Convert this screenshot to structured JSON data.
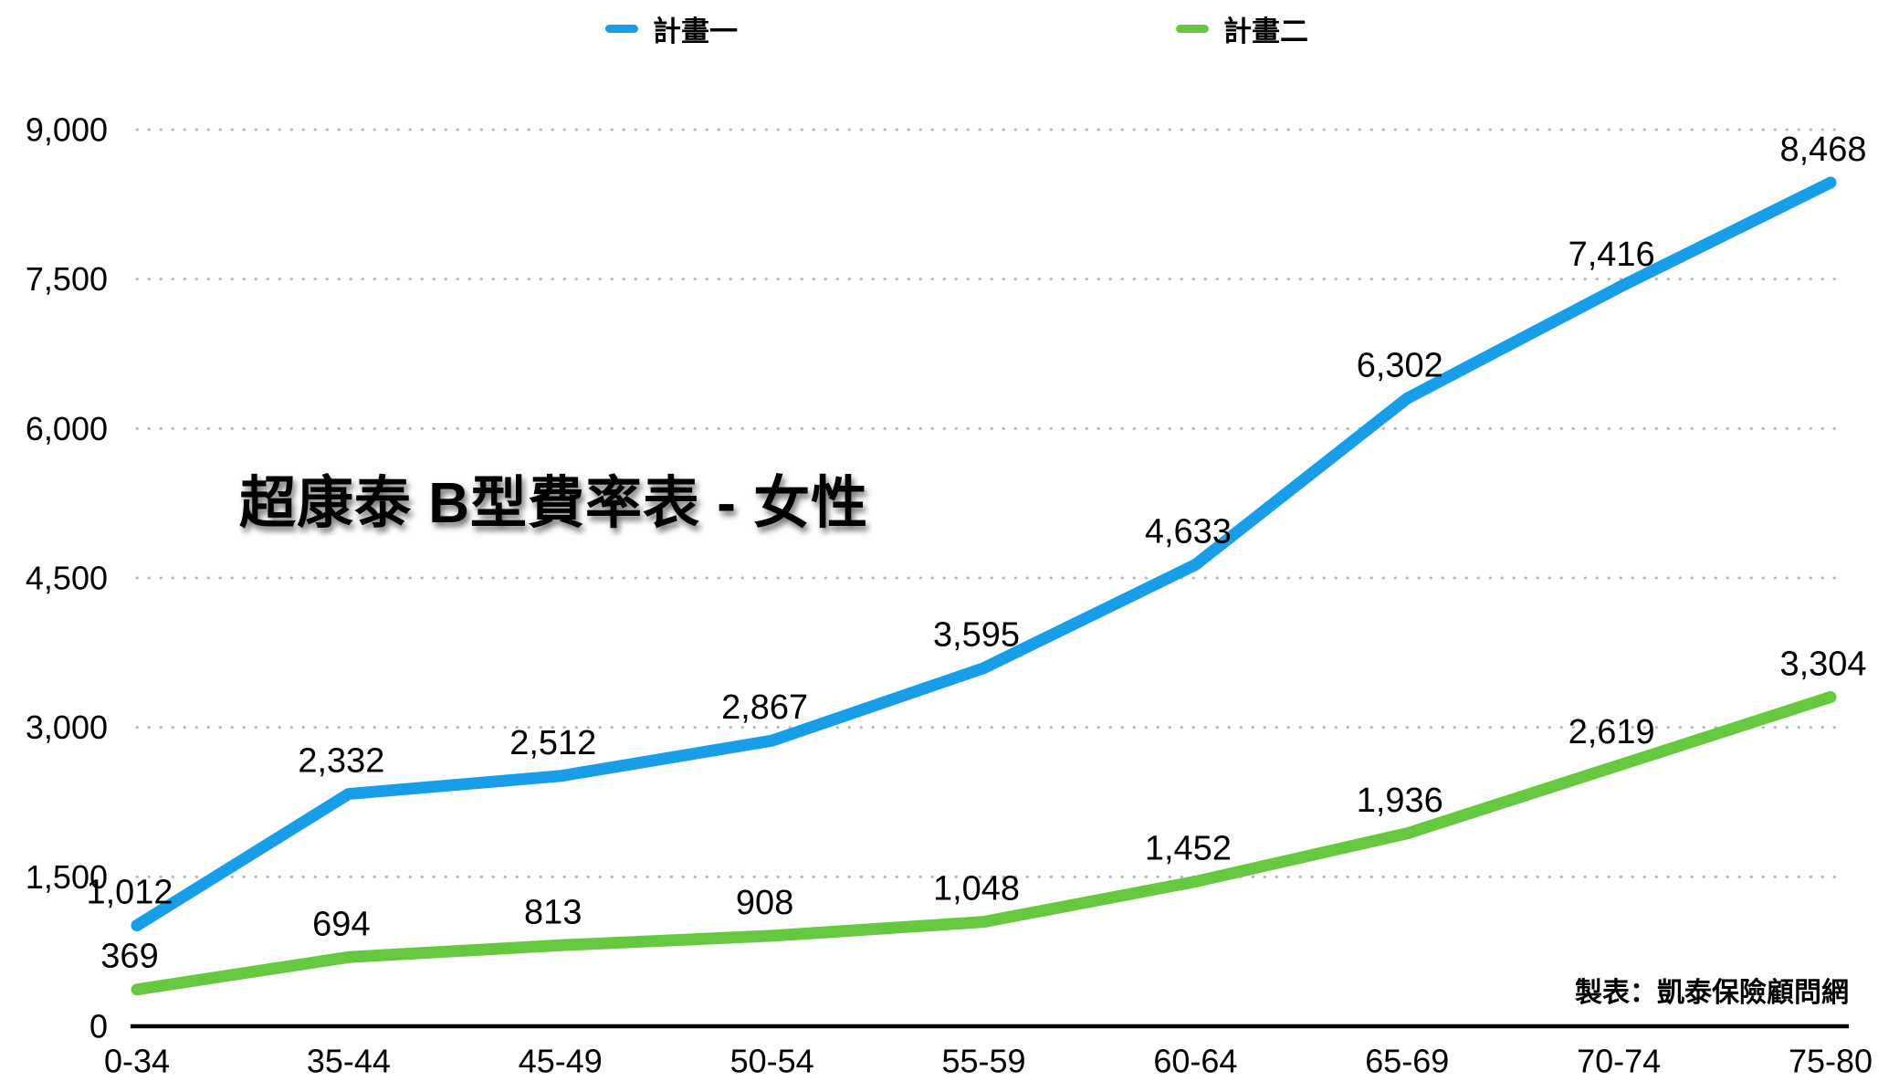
{
  "chart_data": {
    "type": "line",
    "title": "超康泰 B型費率表 - 女性",
    "credit": "製表：凱泰保險顧問網",
    "categories": [
      "0-34",
      "35-44",
      "45-49",
      "50-54",
      "55-59",
      "60-64",
      "65-69",
      "70-74",
      "75-80"
    ],
    "series": [
      {
        "name": "計畫一",
        "color": "#189EE9",
        "values": [
          1012,
          2332,
          2512,
          2867,
          3595,
          4633,
          6302,
          7416,
          8468
        ],
        "labels": [
          "1,012",
          "2,332",
          "2,512",
          "2,867",
          "3,595",
          "4,633",
          "6,302",
          "7,416",
          "8,468"
        ]
      },
      {
        "name": "計畫二",
        "color": "#66C83E",
        "values": [
          369,
          694,
          813,
          908,
          1048,
          1452,
          1936,
          2619,
          3304
        ],
        "labels": [
          "369",
          "694",
          "813",
          "908",
          "1,048",
          "1,452",
          "1,936",
          "2,619",
          "3,304"
        ]
      }
    ],
    "y_axis": {
      "min": 0,
      "max": 9000,
      "tick_interval": 1500,
      "tick_labels": [
        "0",
        "1,500",
        "3,000",
        "4,500",
        "6,000",
        "7,500",
        "9,000"
      ]
    },
    "grid": "dotted horizontal gridlines",
    "legend_position": "top"
  },
  "colors": {
    "background": "#ffffff",
    "grid": "#b9b9b9",
    "axis": "#000000",
    "text": "#000000",
    "series1": "#189EE9",
    "series2": "#66C83E"
  }
}
